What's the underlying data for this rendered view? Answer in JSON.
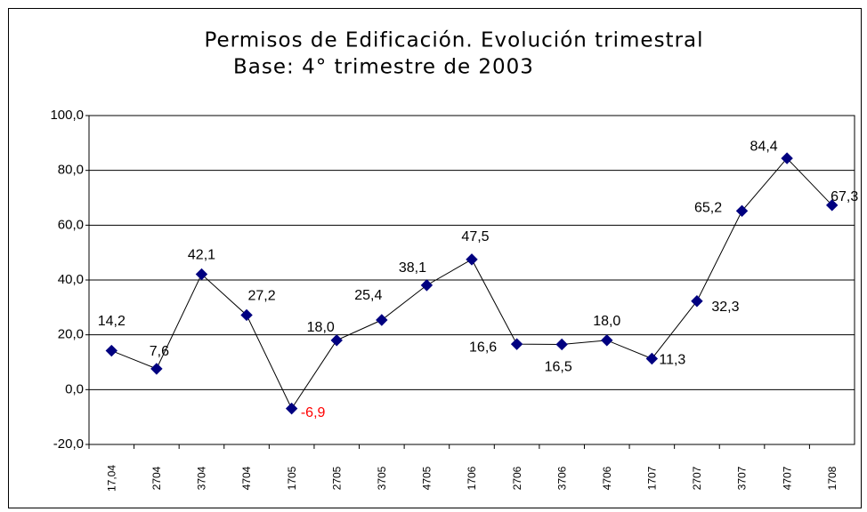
{
  "chart_data": {
    "type": "line",
    "title": "Permisos de Edificación. Evolución trimestral",
    "subtitle": "Base: 4° trimestre de 2003",
    "categories": [
      "17,04",
      "2704",
      "3704",
      "4704",
      "1705",
      "2705",
      "3705",
      "4705",
      "1706",
      "2706",
      "3706",
      "4706",
      "1707",
      "2707",
      "3707",
      "4707",
      "1708"
    ],
    "series": [
      {
        "name": "Permisos",
        "color": "#000080",
        "values": [
          14.2,
          7.6,
          42.1,
          27.2,
          -6.9,
          18.0,
          25.4,
          38.1,
          47.5,
          16.6,
          16.5,
          18.0,
          11.3,
          32.3,
          65.2,
          84.4,
          67.3
        ],
        "value_labels": [
          "14,2",
          "7,6",
          "42,1",
          "27,2",
          "-6,9",
          "18,0",
          "25,4",
          "38,1",
          "47,5",
          "16,6",
          "16,5",
          "18,0",
          "11,3",
          "32,3",
          "65,2",
          "84,4",
          "67,3"
        ]
      }
    ],
    "negative_label_color": "#ff0000",
    "ylim": [
      -20,
      100
    ],
    "yticks": [
      {
        "value": -20,
        "label": "-20,0"
      },
      {
        "value": 0,
        "label": "0,0"
      },
      {
        "value": 20,
        "label": "20,0"
      },
      {
        "value": 40,
        "label": "40,0"
      },
      {
        "value": 60,
        "label": "60,0"
      },
      {
        "value": 80,
        "label": "80,0"
      },
      {
        "value": 100,
        "label": "100,0"
      }
    ],
    "grid": true
  }
}
